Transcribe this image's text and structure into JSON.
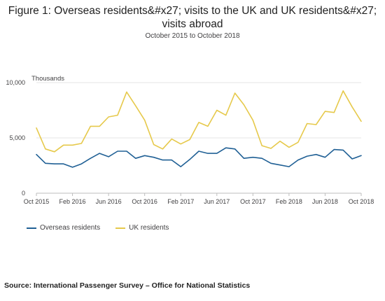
{
  "chart_data": {
    "type": "line",
    "title": "Figure 1: Overseas residents&#x27; visits to the UK and UK residents&#x27; visits abroad",
    "subtitle": "October 2015 to October 2018",
    "ylabel": "Thousands",
    "ylim": [
      0,
      10000
    ],
    "yticks": [
      "10,000",
      "5,000",
      "0"
    ],
    "ytick_values": [
      10000,
      5000,
      0
    ],
    "x_labels": [
      {
        "index": 0,
        "label": "Oct 2015"
      },
      {
        "index": 4,
        "label": "Feb 2016"
      },
      {
        "index": 8,
        "label": "Jun 2016"
      },
      {
        "index": 12,
        "label": "Oct 2016"
      },
      {
        "index": 16,
        "label": "Feb 2017"
      },
      {
        "index": 20,
        "label": "Jun 2017"
      },
      {
        "index": 24,
        "label": "Oct 2017"
      },
      {
        "index": 28,
        "label": "Feb 2018"
      },
      {
        "index": 32,
        "label": "Jun 2018"
      },
      {
        "index": 36,
        "label": "Oct 2018"
      }
    ],
    "grid": "horizontal",
    "legend_position": "bottom-left",
    "series": [
      {
        "name": "Overseas residents",
        "color": "#206095",
        "values": [
          3500,
          2700,
          2650,
          2650,
          2350,
          2650,
          3150,
          3600,
          3300,
          3800,
          3800,
          3150,
          3400,
          3250,
          3000,
          3000,
          2400,
          3050,
          3800,
          3600,
          3600,
          4100,
          4000,
          3150,
          3250,
          3150,
          2700,
          2550,
          2400,
          3000,
          3350,
          3500,
          3250,
          3950,
          3900,
          3100,
          3400
        ]
      },
      {
        "name": "UK residents",
        "color": "#e6c94b",
        "values": [
          5900,
          4000,
          3750,
          4350,
          4350,
          4500,
          6050,
          6050,
          6900,
          7050,
          9150,
          7900,
          6600,
          4400,
          4000,
          4900,
          4450,
          4850,
          6400,
          6050,
          7500,
          7050,
          9050,
          8000,
          6600,
          4300,
          4050,
          4700,
          4150,
          4600,
          6300,
          6200,
          7400,
          7300,
          9250,
          7800,
          6500
        ]
      }
    ]
  },
  "source": "Source: International Passenger Survey – Office for National Statistics"
}
